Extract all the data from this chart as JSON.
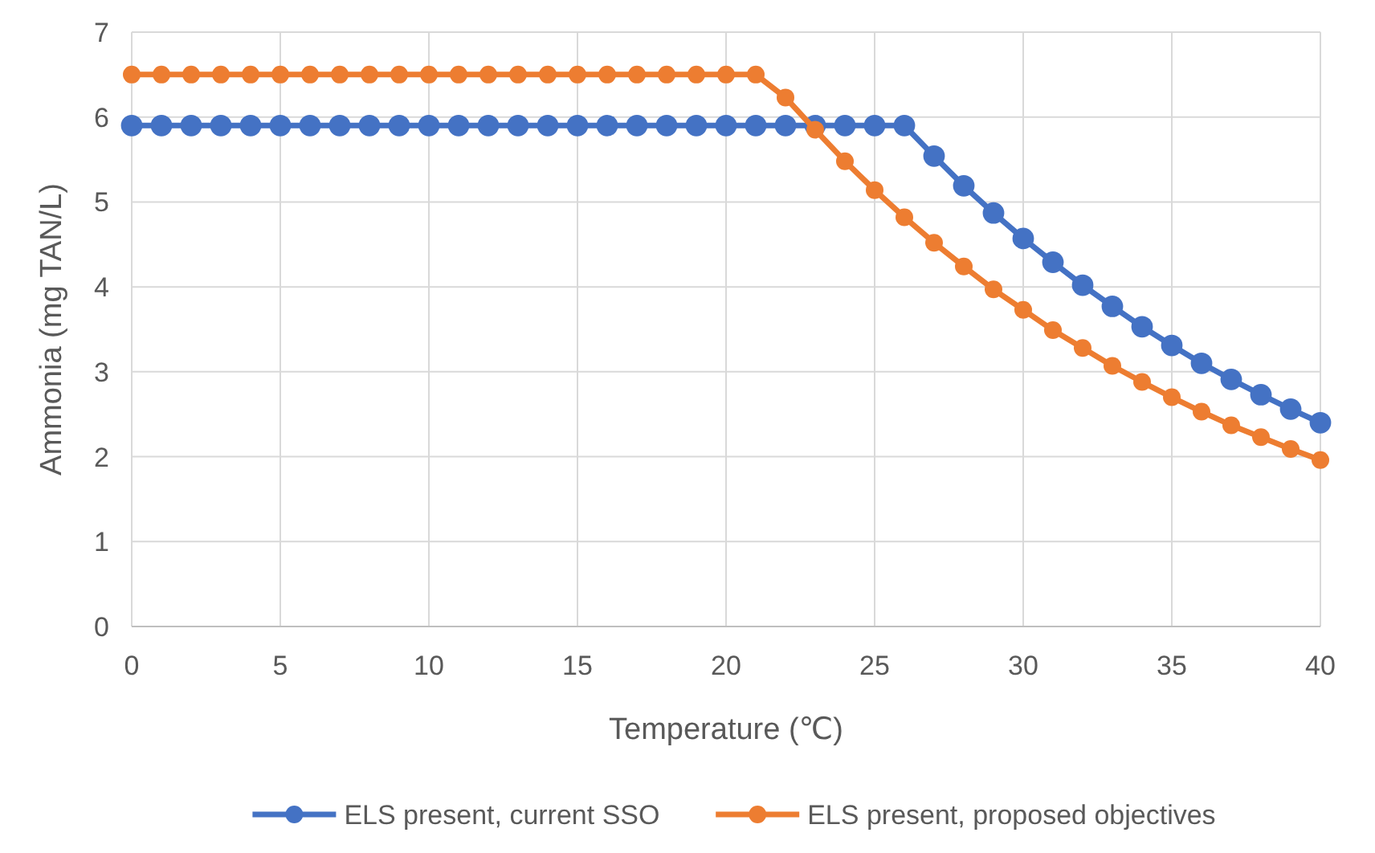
{
  "chart_data": {
    "type": "line",
    "xlabel": "Temperature (℃)",
    "ylabel": "Ammonia (mg TAN/L)",
    "x": [
      0,
      1,
      2,
      3,
      4,
      5,
      6,
      7,
      8,
      9,
      10,
      11,
      12,
      13,
      14,
      15,
      16,
      17,
      18,
      19,
      20,
      21,
      22,
      23,
      24,
      25,
      26,
      27,
      28,
      29,
      30,
      31,
      32,
      33,
      34,
      35,
      36,
      37,
      38,
      39,
      40
    ],
    "series": [
      {
        "name": "ELS present, current SSO",
        "color": "#4472c4",
        "values": [
          5.9,
          5.9,
          5.9,
          5.9,
          5.9,
          5.9,
          5.9,
          5.9,
          5.9,
          5.9,
          5.9,
          5.9,
          5.9,
          5.9,
          5.9,
          5.9,
          5.9,
          5.9,
          5.9,
          5.9,
          5.9,
          5.9,
          5.9,
          5.9,
          5.9,
          5.9,
          5.9,
          5.54,
          5.19,
          4.87,
          4.57,
          4.29,
          4.02,
          3.77,
          3.53,
          3.31,
          3.1,
          2.91,
          2.73,
          2.56,
          2.4
        ]
      },
      {
        "name": "ELS present, proposed objectives",
        "color": "#ed7d31",
        "values": [
          6.5,
          6.5,
          6.5,
          6.5,
          6.5,
          6.5,
          6.5,
          6.5,
          6.5,
          6.5,
          6.5,
          6.5,
          6.5,
          6.5,
          6.5,
          6.5,
          6.5,
          6.5,
          6.5,
          6.5,
          6.5,
          6.5,
          6.23,
          5.85,
          5.48,
          5.14,
          4.82,
          4.52,
          4.24,
          3.97,
          3.73,
          3.49,
          3.28,
          3.07,
          2.88,
          2.7,
          2.53,
          2.37,
          2.23,
          2.09,
          1.96
        ]
      }
    ],
    "xlim": [
      0,
      40
    ],
    "xticks": [
      0,
      5,
      10,
      15,
      20,
      25,
      30,
      35,
      40
    ],
    "ylim": [
      0,
      7
    ],
    "yticks": [
      0,
      1,
      2,
      3,
      4,
      5,
      6,
      7
    ],
    "grid": true,
    "legend": "bottom",
    "marker": "circle",
    "line_style": "solid"
  }
}
